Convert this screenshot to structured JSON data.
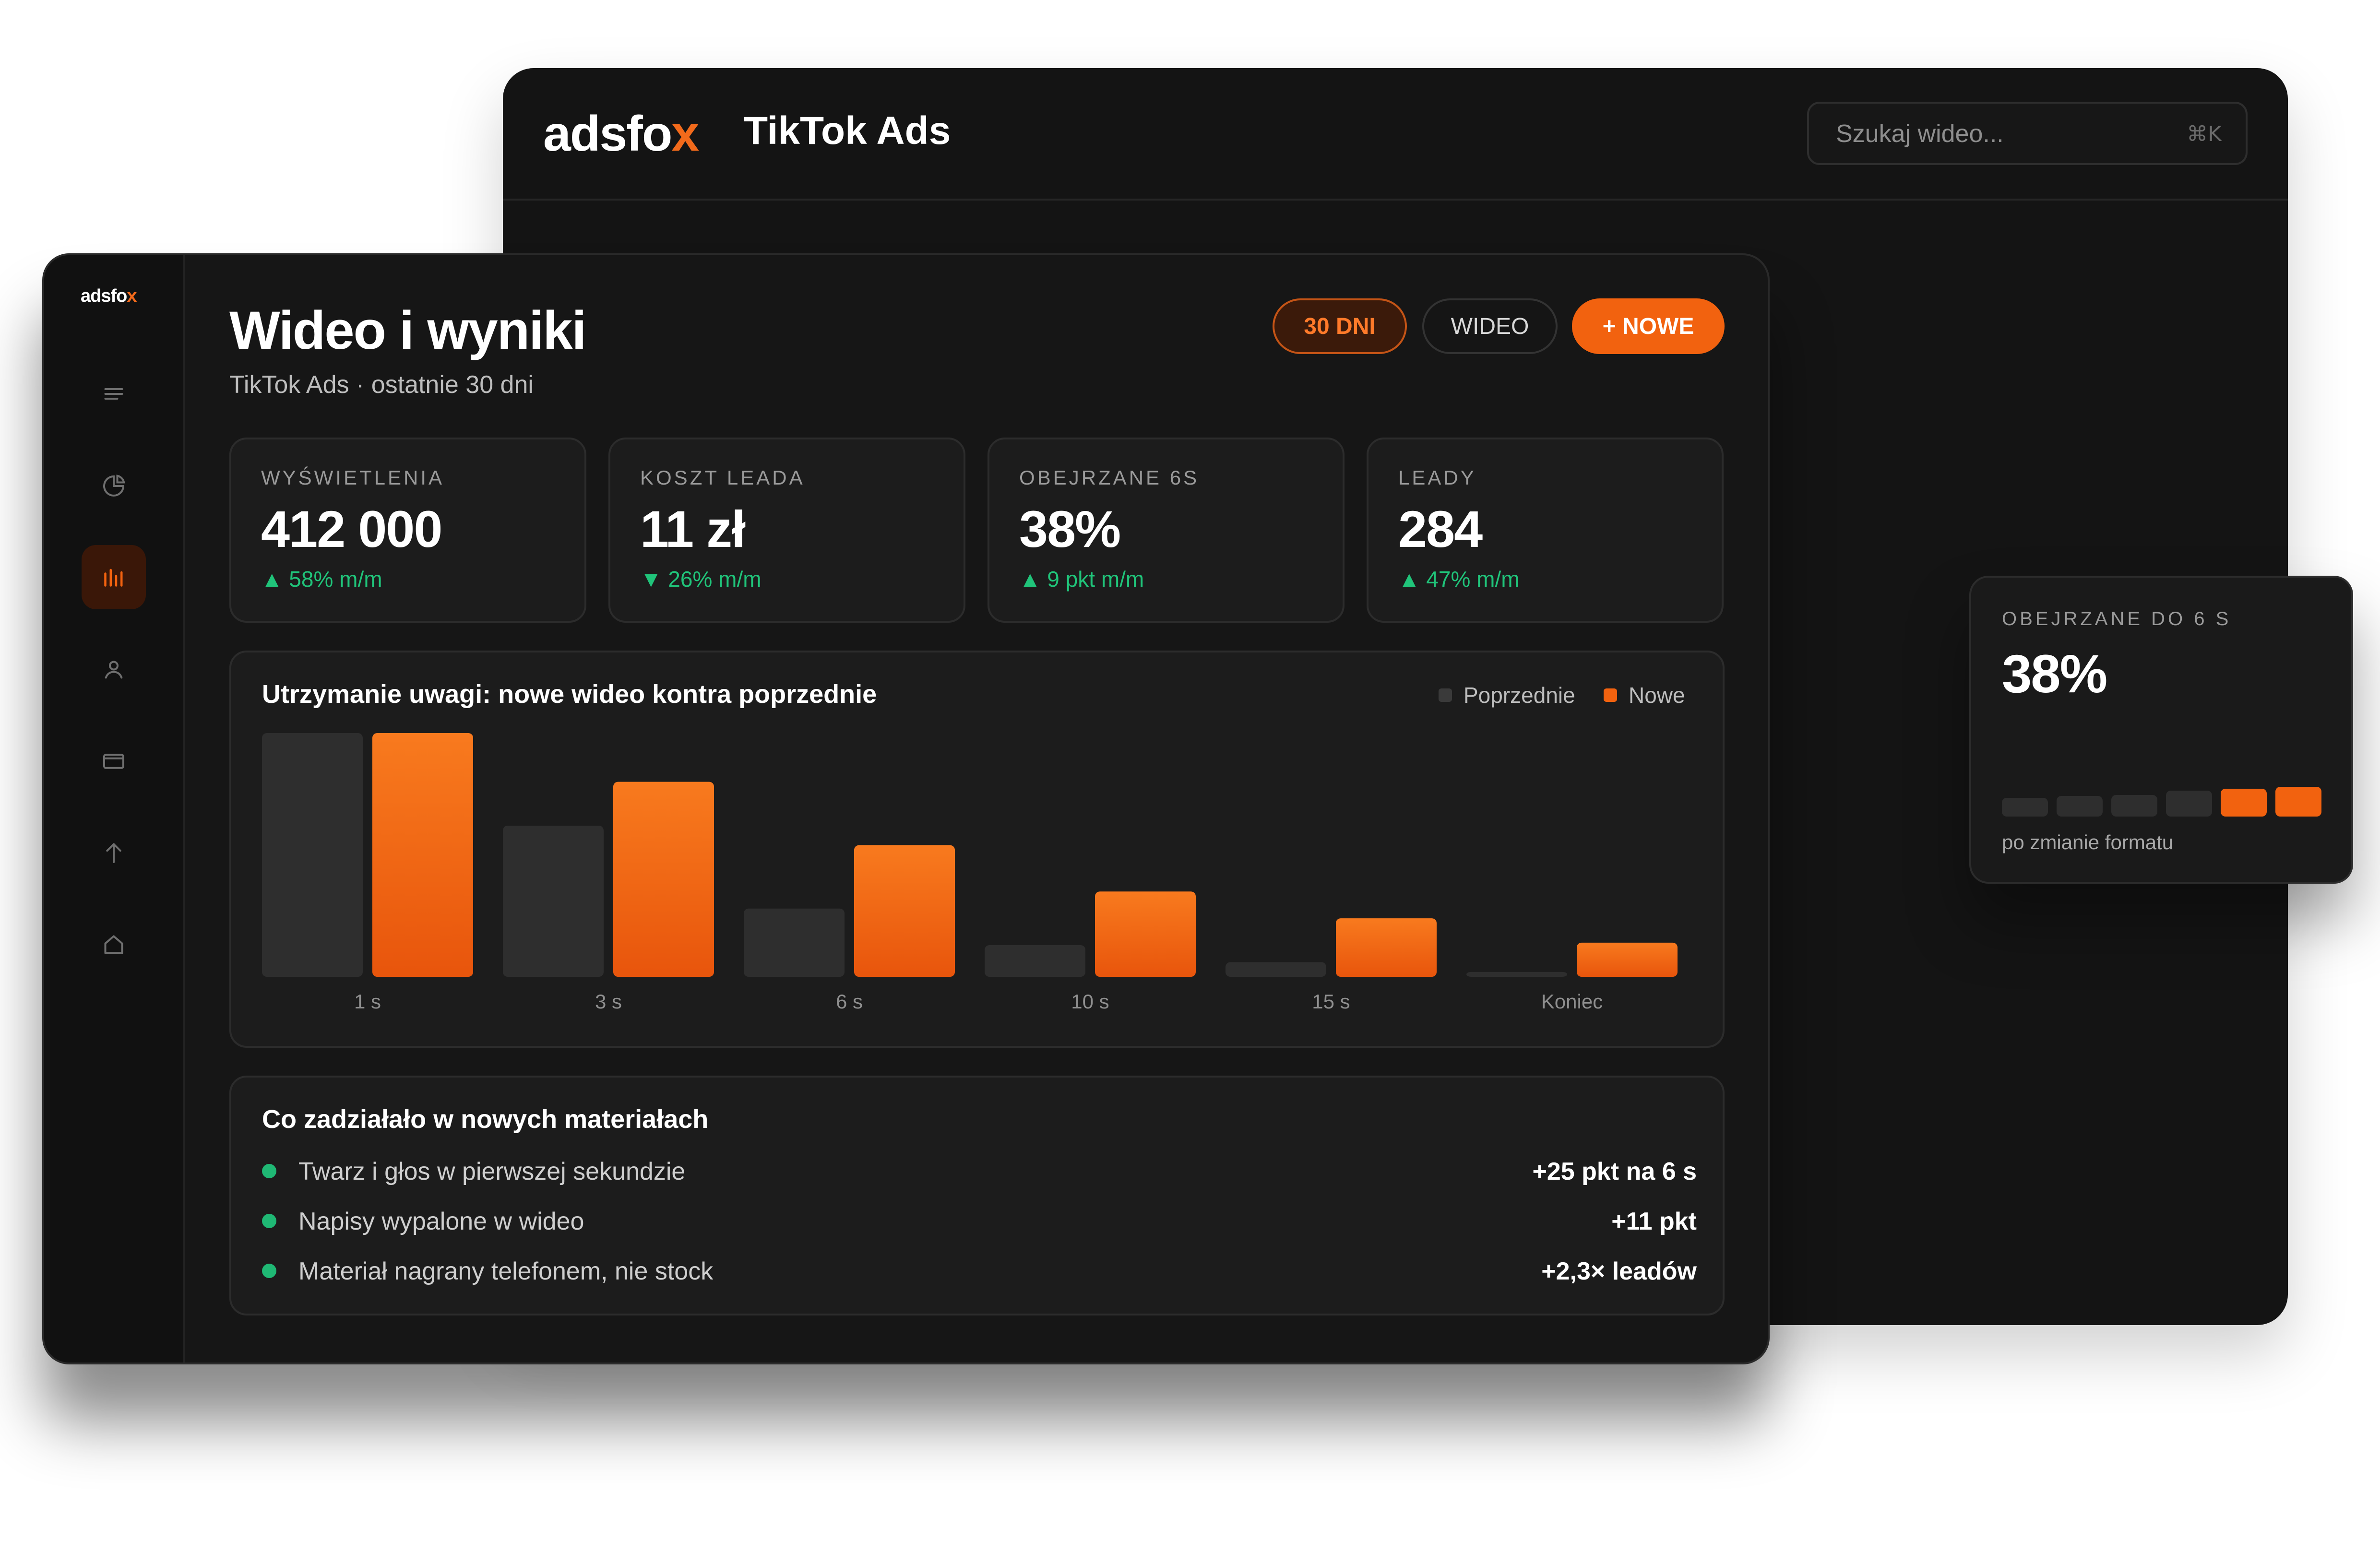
{
  "back_window": {
    "logo": {
      "main": "adsfo",
      "mark": "x"
    },
    "title": "TikTok Ads",
    "search": {
      "placeholder": "Szukaj wideo...",
      "shortcut": "⌘K"
    }
  },
  "sidebar": {
    "logo": {
      "main": "adsfo",
      "mark": "x"
    },
    "items": [
      {
        "icon": "menu-icon",
        "active": false
      },
      {
        "icon": "pie-chart-icon",
        "active": false
      },
      {
        "icon": "bar-chart-icon",
        "active": true
      },
      {
        "icon": "user-icon",
        "active": false
      },
      {
        "icon": "card-icon",
        "active": false
      },
      {
        "icon": "arrow-up-icon",
        "active": false
      },
      {
        "icon": "home-icon",
        "active": false
      }
    ]
  },
  "header": {
    "title": "Wideo i wyniki",
    "subtitle": "TikTok Ads · ostatnie 30 dni",
    "buttons": {
      "period": "30 DNI",
      "video": "WIDEO",
      "new": "+ NOWE"
    }
  },
  "kpis": [
    {
      "label": "WYŚWIETLENIA",
      "value": "412 000",
      "change": "▲ 58% m/m"
    },
    {
      "label": "KOSZT LEADA",
      "value": "11 zł",
      "change": "▼ 26% m/m"
    },
    {
      "label": "OBEJRZANE 6S",
      "value": "38%",
      "change": "▲ 9 pkt m/m"
    },
    {
      "label": "LEADY",
      "value": "284",
      "change": "▲ 47% m/m"
    }
  ],
  "chart_data": {
    "type": "bar",
    "title": "Utrzymanie uwagi: nowe wideo kontra poprzednie",
    "categories": [
      "1 s",
      "3 s",
      "6 s",
      "10 s",
      "15 s",
      "Koniec"
    ],
    "series": [
      {
        "name": "Poprzednie",
        "color": "#2e2e2e",
        "values": [
          100,
          62,
          28,
          13,
          6,
          2
        ]
      },
      {
        "name": "Nowe",
        "color": "#f2620f",
        "values": [
          100,
          80,
          54,
          35,
          24,
          14
        ]
      }
    ],
    "ylim": [
      0,
      100
    ],
    "grid": false,
    "legend": "top-right"
  },
  "wins": {
    "title": "Co zadziałało w nowych materiałach",
    "items": [
      {
        "text": "Twarz i głos w pierwszej sekundzie",
        "result": "+25 pkt na 6 s"
      },
      {
        "text": "Napisy wypalone w wideo",
        "result": "+11 pkt"
      },
      {
        "text": "Materiał nagrany telefonem, nie stock",
        "result": "+2,3× leadów"
      }
    ]
  },
  "float_card": {
    "label": "OBEJRZANE DO 6 S",
    "value": "38%",
    "note": "po zmianie formatu",
    "steps": [
      {
        "level": 0.45,
        "highlight": false
      },
      {
        "level": 0.55,
        "highlight": false
      },
      {
        "level": 0.6,
        "highlight": false
      },
      {
        "level": 0.8,
        "highlight": false
      },
      {
        "level": 0.9,
        "highlight": true
      },
      {
        "level": 1.0,
        "highlight": true
      }
    ],
    "colors": {
      "muted": "#2e2e2e",
      "accent": "#f2620f"
    }
  },
  "colors": {
    "accent": "#f2620f",
    "positive": "#20c47a"
  }
}
